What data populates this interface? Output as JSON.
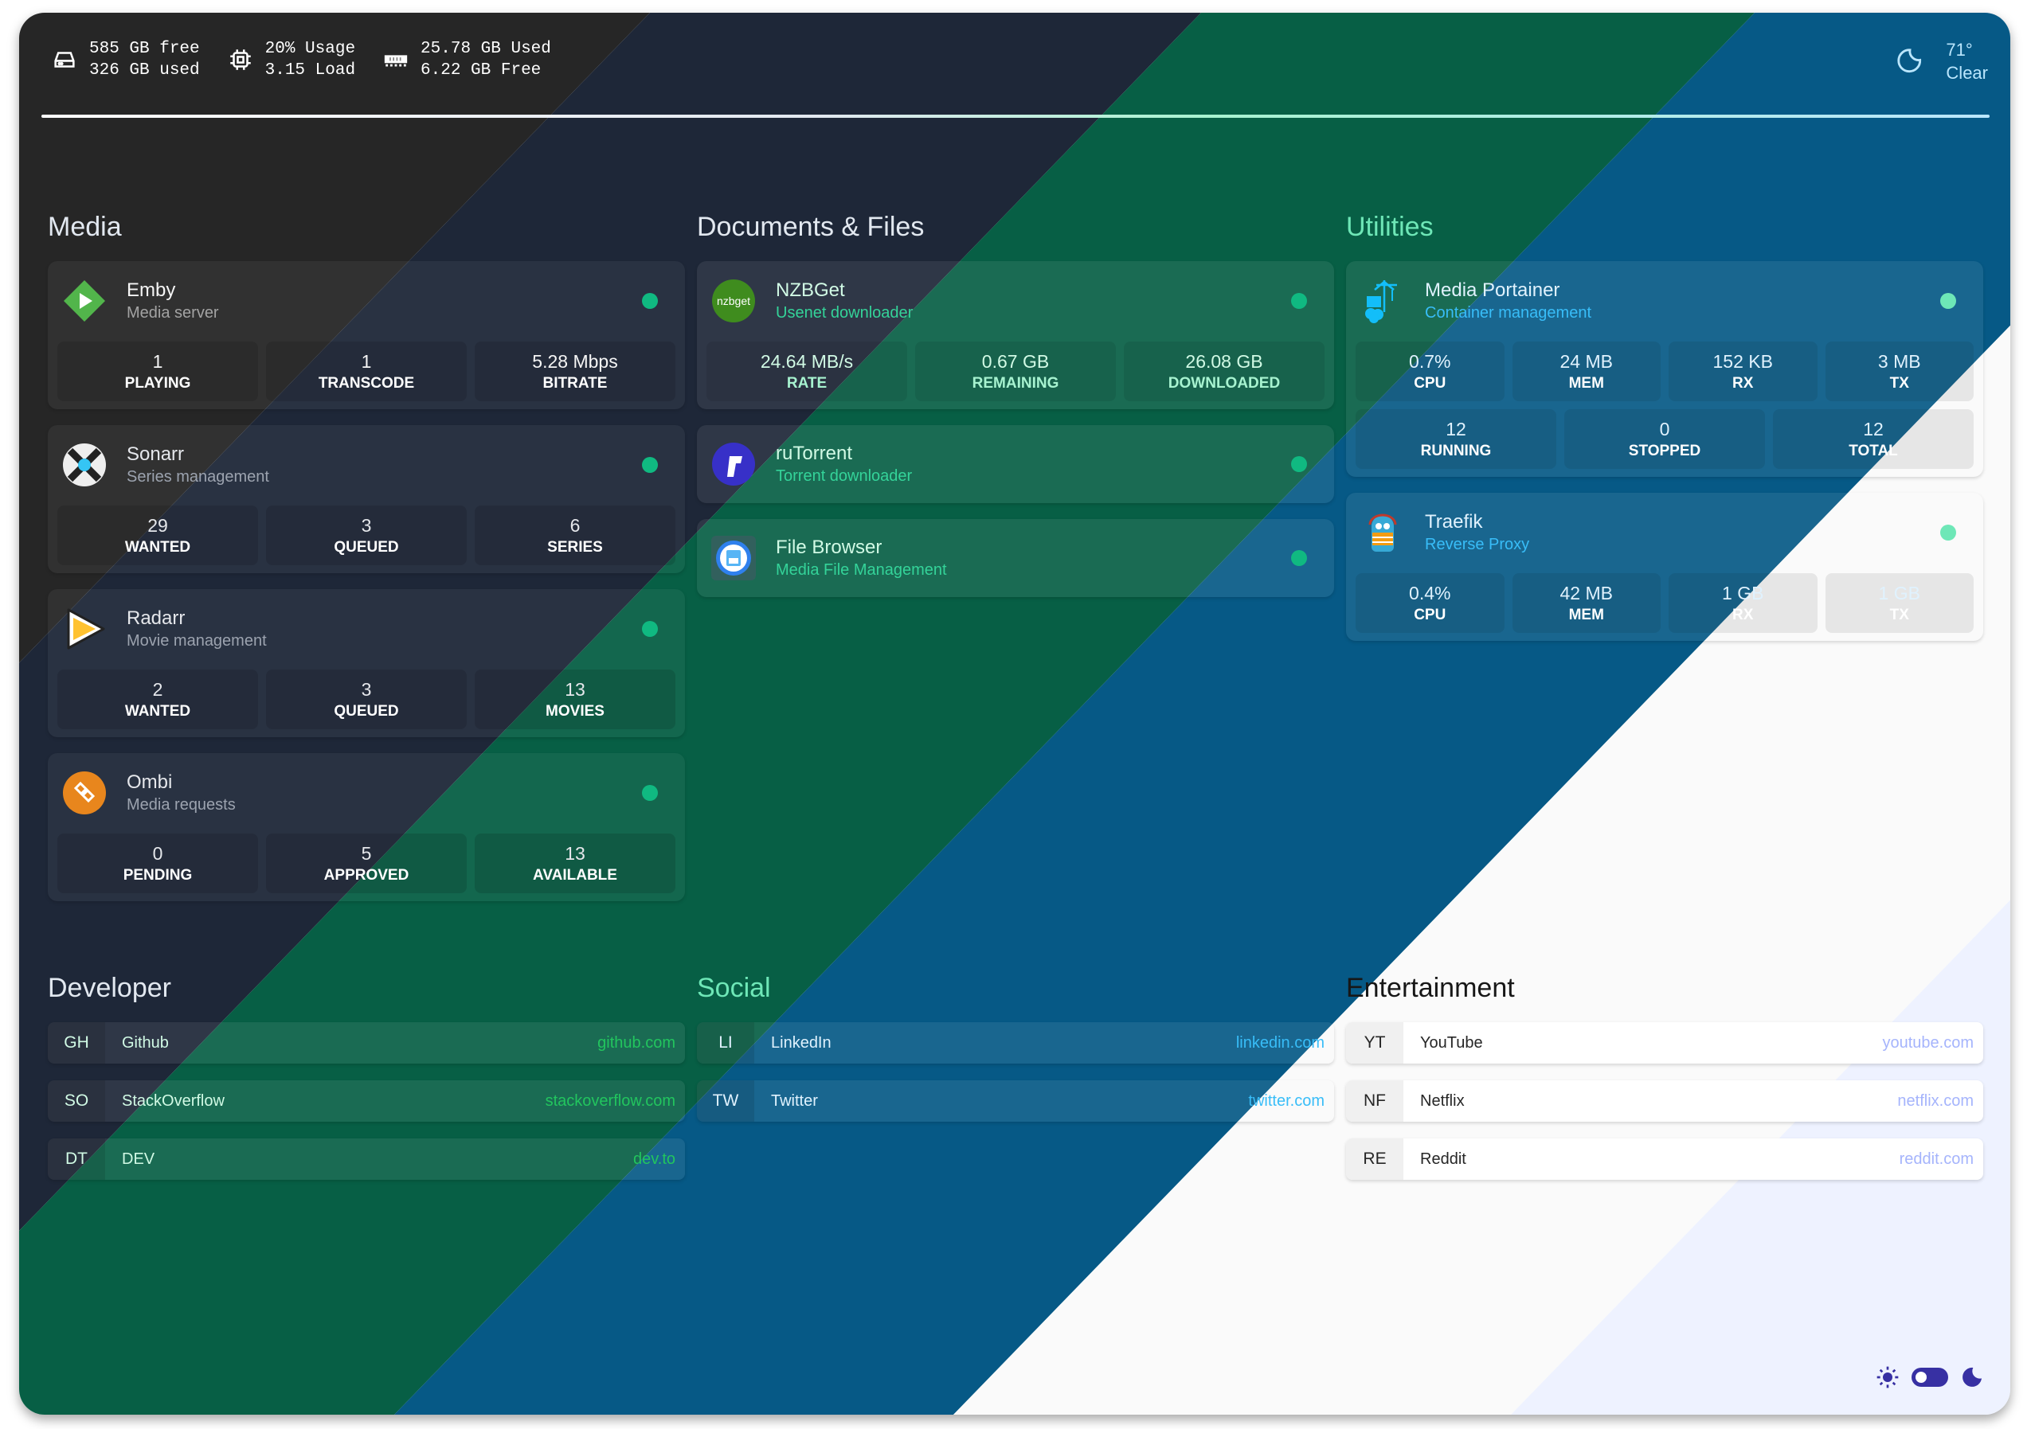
{
  "header": {
    "disk": {
      "free": "585 GB free",
      "used": "326 GB used",
      "icon": "hard-drive-icon"
    },
    "cpu": {
      "usage": "20% Usage",
      "load": "3.15 Load",
      "icon": "cpu-icon"
    },
    "memory": {
      "used": "25.78 GB Used",
      "free": "6.22 GB Free",
      "icon": "memory-icon"
    },
    "weather": {
      "temp": "71°",
      "condition": "Clear",
      "icon": "moon-icon"
    }
  },
  "sections": [
    {
      "title": "Media",
      "services": [
        {
          "name": "Emby",
          "desc": "Media server",
          "icon": "emby-icon",
          "stats": [
            {
              "value": "1",
              "label": "Playing"
            },
            {
              "value": "1",
              "label": "Transcode"
            },
            {
              "value": "5.28 Mbps",
              "label": "Bitrate"
            }
          ]
        },
        {
          "name": "Sonarr",
          "desc": "Series management",
          "icon": "sonarr-icon",
          "stats": [
            {
              "value": "29",
              "label": "Wanted"
            },
            {
              "value": "3",
              "label": "Queued"
            },
            {
              "value": "6",
              "label": "Series"
            }
          ]
        },
        {
          "name": "Radarr",
          "desc": "Movie management",
          "icon": "radarr-icon",
          "stats": [
            {
              "value": "2",
              "label": "Wanted"
            },
            {
              "value": "3",
              "label": "Queued"
            },
            {
              "value": "13",
              "label": "Movies"
            }
          ]
        },
        {
          "name": "Ombi",
          "desc": "Media requests",
          "icon": "ombi-icon",
          "stats": [
            {
              "value": "0",
              "label": "Pending"
            },
            {
              "value": "5",
              "label": "Approved"
            },
            {
              "value": "13",
              "label": "Available"
            }
          ]
        }
      ]
    },
    {
      "title": "Documents & Files",
      "services": [
        {
          "name": "NZBGet",
          "desc": "Usenet downloader",
          "icon": "nzbget-icon",
          "logo_text": "nzbget",
          "stats": [
            {
              "value": "24.64 MB/s",
              "label": "Rate"
            },
            {
              "value": "0.67 GB",
              "label": "Remaining"
            },
            {
              "value": "26.08 GB",
              "label": "Downloaded"
            }
          ]
        },
        {
          "name": "ruTorrent",
          "desc": "Torrent downloader",
          "icon": "rutorrent-icon"
        },
        {
          "name": "File Browser",
          "desc": "Media File Management",
          "icon": "file-browser-icon"
        }
      ]
    },
    {
      "title": "Utilities",
      "services": [
        {
          "name": "Media Portainer",
          "desc": "Container management",
          "icon": "portainer-icon",
          "stats": [
            {
              "value": "0.7%",
              "label": "CPU"
            },
            {
              "value": "24 MB",
              "label": "MEM"
            },
            {
              "value": "152 KB",
              "label": "RX"
            },
            {
              "value": "3 MB",
              "label": "TX"
            }
          ],
          "stats2": [
            {
              "value": "12",
              "label": "Running"
            },
            {
              "value": "0",
              "label": "Stopped"
            },
            {
              "value": "12",
              "label": "Total"
            }
          ]
        },
        {
          "name": "Traefik",
          "desc": "Reverse Proxy",
          "icon": "traefik-icon",
          "stats": [
            {
              "value": "0.4%",
              "label": "CPU"
            },
            {
              "value": "42 MB",
              "label": "MEM"
            },
            {
              "value": "1 GB",
              "label": "RX"
            },
            {
              "value": "1 GB",
              "label": "TX"
            }
          ]
        }
      ]
    }
  ],
  "bookmarks": [
    {
      "title": "Developer",
      "items": [
        {
          "abbr": "GH",
          "name": "Github",
          "url": "github.com"
        },
        {
          "abbr": "SO",
          "name": "StackOverflow",
          "url": "stackoverflow.com"
        },
        {
          "abbr": "DT",
          "name": "DEV",
          "url": "dev.to"
        }
      ]
    },
    {
      "title": "Social",
      "items": [
        {
          "abbr": "LI",
          "name": "LinkedIn",
          "url": "linkedin.com"
        },
        {
          "abbr": "TW",
          "name": "Twitter",
          "url": "twitter.com"
        }
      ]
    },
    {
      "title": "Entertainment",
      "items": [
        {
          "abbr": "YT",
          "name": "YouTube",
          "url": "youtube.com"
        },
        {
          "abbr": "NF",
          "name": "Netflix",
          "url": "netflix.com"
        },
        {
          "abbr": "RE",
          "name": "Reddit",
          "url": "reddit.com"
        }
      ]
    }
  ],
  "theme_toggle": {
    "state": "light",
    "icons": [
      "sun-icon",
      "moon-icon"
    ]
  },
  "colors": {
    "status_up": "#10b981",
    "toggle": "#3730a3"
  }
}
